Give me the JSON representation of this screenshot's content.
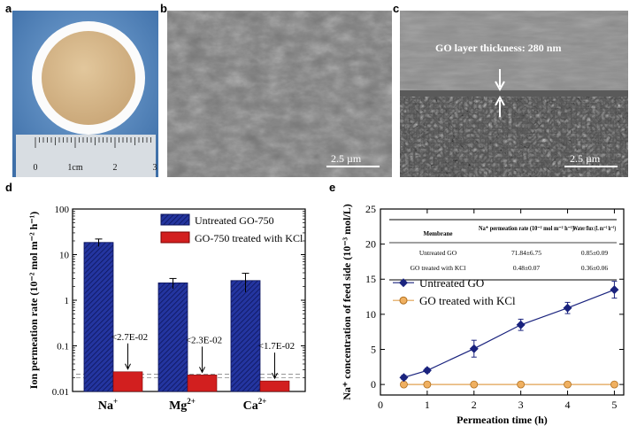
{
  "panels": {
    "a": {
      "letter": "a",
      "ruler_labels": [
        "0",
        "1cm",
        "2",
        "3"
      ]
    },
    "b": {
      "letter": "b",
      "scale_bar": "2.5 µm"
    },
    "c": {
      "letter": "c",
      "annotation": "GO layer thickness: 280 nm",
      "scale_bar": "2.5 µm"
    },
    "d": {
      "letter": "d"
    },
    "e": {
      "letter": "e"
    }
  },
  "colors": {
    "blue": "#1f2f8f",
    "red": "#d21f1f",
    "navy": "#1a237e",
    "orange": "#e0a050",
    "photo_bg": "#5b8fc7",
    "membrane": "#d8b98b"
  },
  "chart_data": [
    {
      "type": "bar",
      "panel": "d",
      "categories": [
        "Na+",
        "Mg2+",
        "Ca2+"
      ],
      "series": [
        {
          "name": "Untreated GO-750",
          "values": [
            18.5,
            2.4,
            2.7
          ],
          "errors": [
            3.5,
            0.6,
            1.2
          ]
        },
        {
          "name": "GO-750 treated with KCl",
          "values": [
            0.027,
            0.023,
            0.017
          ]
        }
      ],
      "annotations": [
        "<2.7E-02",
        "<2.3E-02",
        "<1.7E-02"
      ],
      "ylabel": "Ion permeation rate (10⁻² mol m⁻² h⁻¹)",
      "yscale": "log",
      "ylim": [
        0.01,
        100
      ],
      "yticks": [
        "0.01",
        "0.1",
        "1",
        "10",
        "100"
      ],
      "legend_position": "top-right"
    },
    {
      "type": "line",
      "panel": "e",
      "x": [
        0.5,
        1,
        2,
        3,
        4,
        5
      ],
      "series": [
        {
          "name": "Untreated GO",
          "values": [
            1.0,
            2.0,
            5.1,
            8.5,
            10.9,
            13.5
          ],
          "errors": [
            0.3,
            0.3,
            1.2,
            0.8,
            0.8,
            1.2
          ]
        },
        {
          "name": "GO treated with KCl",
          "values": [
            0,
            0,
            0,
            0,
            0,
            0
          ]
        }
      ],
      "xlabel": "Permeation time (h)",
      "ylabel": "Na⁺ concentration of feed side (10⁻³ mol/L)",
      "xlim": [
        0,
        5.2
      ],
      "ylim": [
        -1.5,
        25
      ],
      "xticks": [
        "0",
        "1",
        "2",
        "3",
        "4",
        "5"
      ],
      "yticks": [
        "0",
        "5",
        "10",
        "15",
        "20",
        "25"
      ],
      "legend_position": "middle-left",
      "inset_table": {
        "headers": [
          "Membrane",
          "Na⁺ permeation rate (10⁻² mol m⁻² h⁻¹)",
          "Water flux (L m⁻² h⁻¹)"
        ],
        "rows": [
          [
            "Untreated GO",
            "71.84±6.75",
            "0.85±0.09"
          ],
          [
            "GO treated with KCl",
            "0.48±0.07",
            "0.36±0.06"
          ]
        ]
      }
    }
  ]
}
